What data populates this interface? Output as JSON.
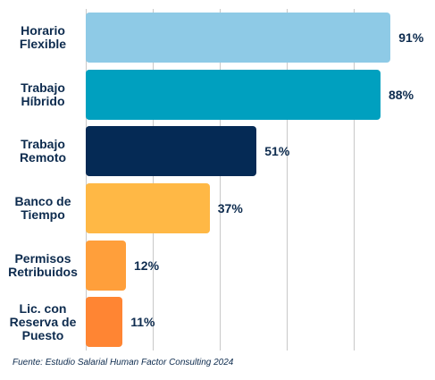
{
  "chart_data": {
    "type": "barh",
    "categories": [
      "Horario Flexible",
      "Trabajo Híbrido",
      "Trabajo Remoto",
      "Banco de Tiempo",
      "Permisos Retribuidos",
      "Lic. con Reserva de Puesto"
    ],
    "values": [
      91,
      88,
      51,
      37,
      12,
      11
    ],
    "value_labels": [
      "91%",
      "88%",
      "51%",
      "37%",
      "12%",
      "11%"
    ],
    "colors": [
      "#8ecae6",
      "#00a0bf",
      "#052a55",
      "#ffb845",
      "#ff9f3b",
      "#ff8533"
    ],
    "xlim": [
      0,
      100
    ],
    "xticks": [
      0,
      20,
      40,
      60,
      80
    ],
    "grid": true,
    "note": "Fuente: Estudio Salarial Human Factor Consulting 2024"
  }
}
